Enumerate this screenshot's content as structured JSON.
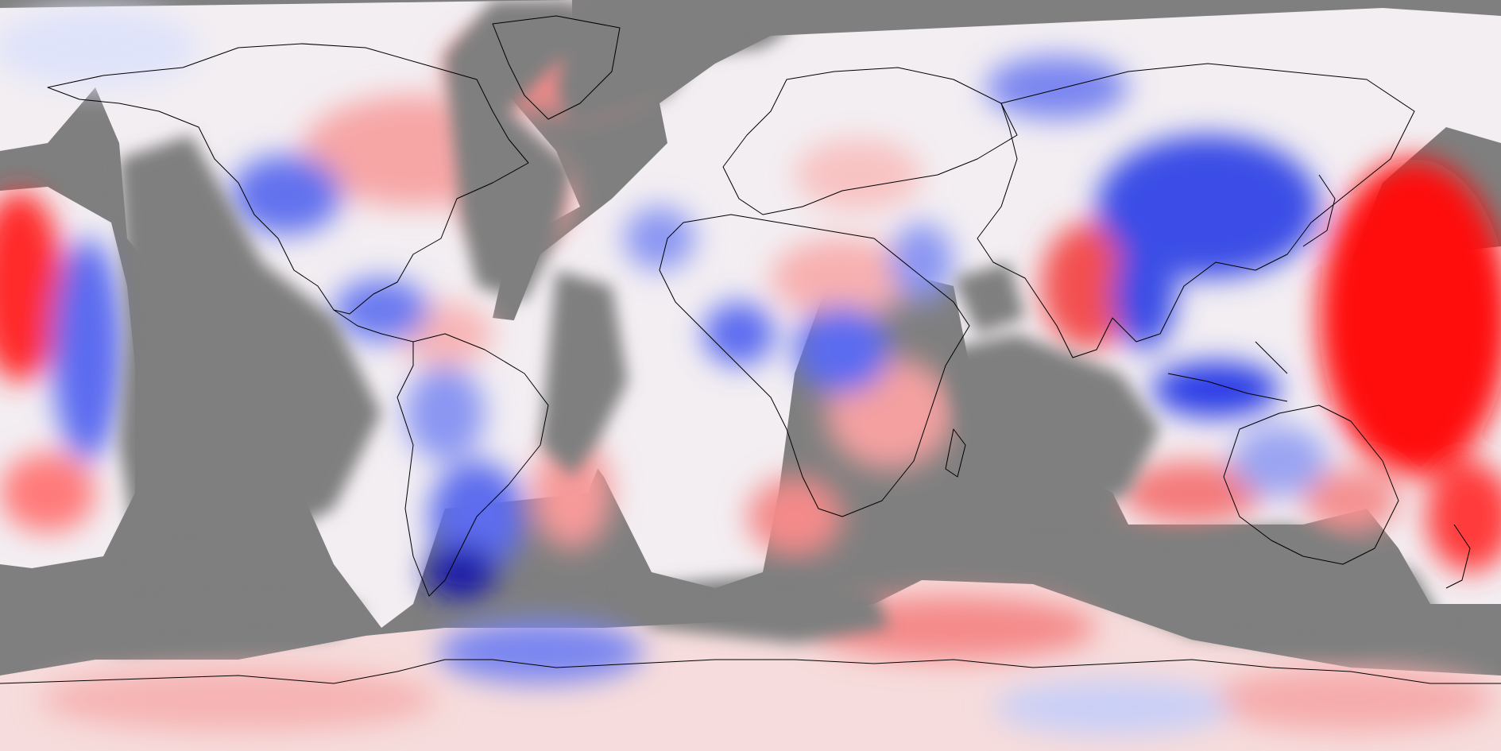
{
  "map": {
    "projection": "equirectangular",
    "background_color": "#7f7f7f",
    "no_data_color": "#7f7f7f",
    "coastline_color": "#000000",
    "colormap": {
      "negative": "#0000ff",
      "neutral": "#ffffff",
      "positive": "#ff0000",
      "deep_negative": "#00008b"
    },
    "labels_present": false
  }
}
